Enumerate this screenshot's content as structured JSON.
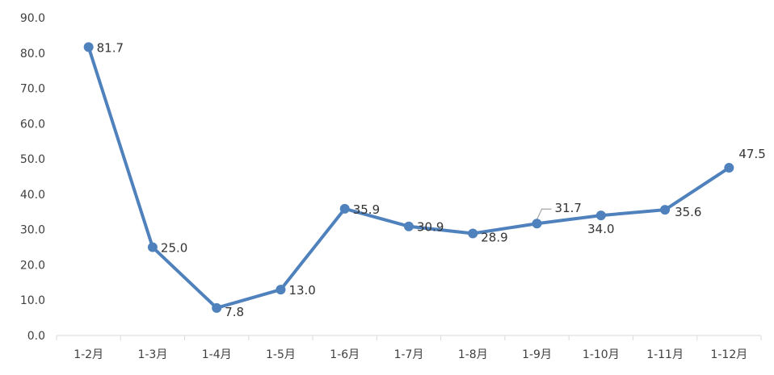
{
  "chart_data": {
    "type": "line",
    "title": "",
    "xlabel": "",
    "ylabel": "",
    "categories": [
      "1-2月",
      "1-3月",
      "1-4月",
      "1-5月",
      "1-6月",
      "1-7月",
      "1-8月",
      "1-9月",
      "1-10月",
      "1-11月",
      "1-12月"
    ],
    "series": [
      {
        "values": [
          81.7,
          25.0,
          7.8,
          13.0,
          35.9,
          30.9,
          28.9,
          31.7,
          34.0,
          35.6,
          47.5
        ],
        "value_labels": [
          "81.7",
          "25.0",
          "7.8",
          "13.0",
          "35.9",
          "30.9",
          "28.9",
          "31.7",
          "34.0",
          "35.6",
          "47.5"
        ]
      }
    ],
    "yticks": [
      "0.0",
      "10.0",
      "20.0",
      "30.0",
      "40.0",
      "50.0",
      "60.0",
      "70.0",
      "80.0",
      "90.0"
    ],
    "ylim": [
      0,
      90
    ],
    "grid": false,
    "legend": "none",
    "line_color": "#4f81bd",
    "axis_color": "#d9d9d9"
  }
}
